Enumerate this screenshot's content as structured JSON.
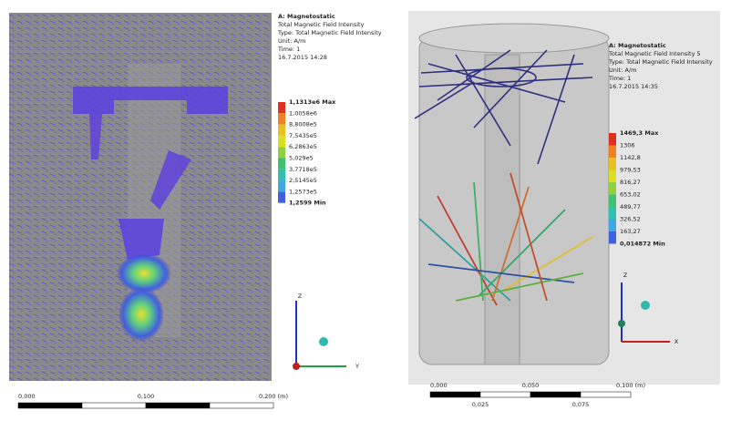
{
  "left_panel": {
    "title": "A: Magnetostatic",
    "info": [
      "Total Magnetic Field Intensity",
      "Type: Total Magnetic Field Intensity",
      "Unit: A/m",
      "Time: 1",
      "16.7.2015 14:28"
    ],
    "color_scale": [
      "1,1313e6 Max",
      "1,0058e6",
      "8,8008e5",
      "7,5435e5",
      "6,2863e5",
      "5,029e5",
      "3,7718e5",
      "2,5145e5",
      "1,2573e5",
      "1,2599 Min"
    ],
    "scale_bar": [
      "0,000",
      "0,100",
      "0,200 (m)"
    ],
    "triad": [
      "Z",
      "Y"
    ]
  },
  "right_panel": {
    "title": "A: Magnetostatic",
    "info": [
      "Total Magnetic Field Intensity 5",
      "Type: Total Magnetic Field Intensity",
      "Unit: A/m",
      "Time: 1",
      "16.7.2015 14:35"
    ],
    "color_scale": [
      "1469,3 Max",
      "1306",
      "1142,8",
      "979,53",
      "816,27",
      "653,02",
      "489,77",
      "326,52",
      "163,27",
      "0,014872 Min"
    ],
    "scale_bar": [
      "0,000",
      "0,050",
      "0,100 (m)"
    ],
    "scale_bar_minor": [
      "0,025",
      "0,075"
    ],
    "triad": [
      "Z",
      "X"
    ]
  }
}
